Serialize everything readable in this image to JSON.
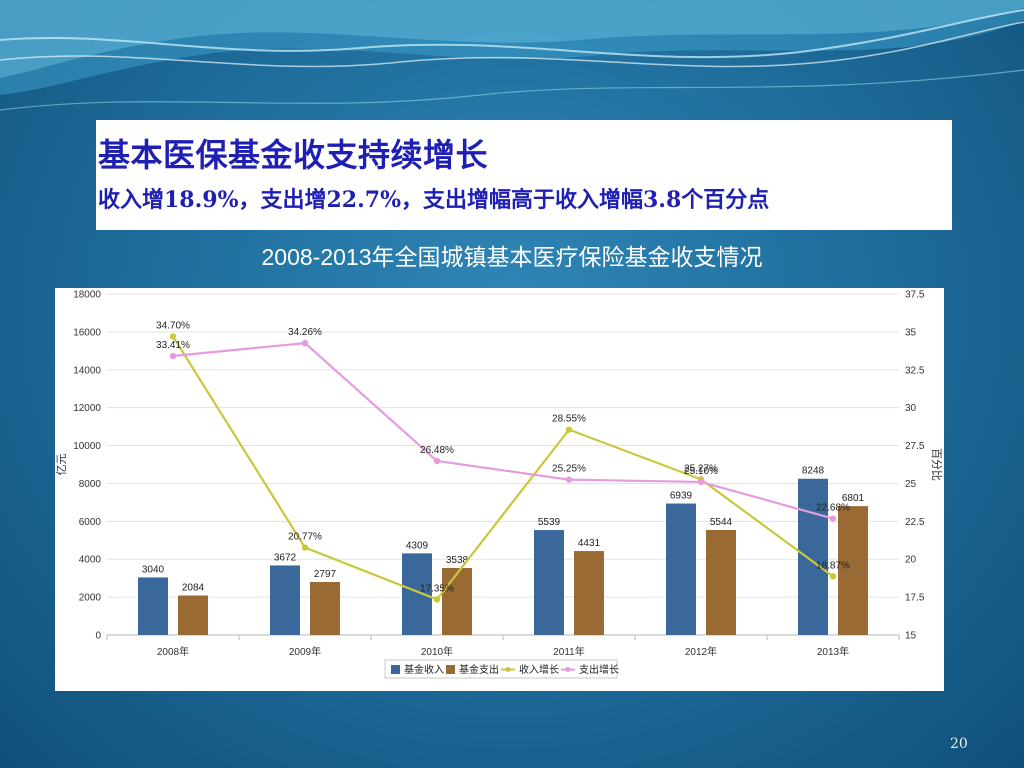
{
  "slide": {
    "title": "基本医保基金收支持续增长",
    "subtitle": "收入增18.9%，支出增22.7%，支出增幅高于收入增幅3.8个百分点",
    "chart_caption": "2008-2013年全国城镇基本医疗保险基金收支情况",
    "page_number": "20"
  },
  "colors": {
    "income_bar": "#3a689b",
    "expense_bar": "#9a6a35",
    "income_growth_line": "#c9c83b",
    "expense_growth_line": "#e59be0",
    "background": "#1d6a98",
    "title_text": "#1f1fb4"
  },
  "chart_data": {
    "type": "bar",
    "categories": [
      "2008年",
      "2009年",
      "2010年",
      "2011年",
      "2012年",
      "2013年"
    ],
    "series": [
      {
        "name": "基金收入",
        "type": "bar",
        "axis": "left",
        "values": [
          3040,
          3672,
          4309,
          5539,
          6939,
          8248
        ]
      },
      {
        "name": "基金支出",
        "type": "bar",
        "axis": "left",
        "values": [
          2084,
          2797,
          3538,
          4431,
          5544,
          6801
        ]
      },
      {
        "name": "收入增长",
        "type": "line",
        "axis": "right",
        "values": [
          34.7,
          20.77,
          17.35,
          28.55,
          25.27,
          18.87
        ],
        "labels": [
          "34.70%",
          "20.77%",
          "17.35%",
          "28.55%",
          "25.27%",
          "18.87%"
        ]
      },
      {
        "name": "支出增长",
        "type": "line",
        "axis": "right",
        "values": [
          33.41,
          34.26,
          26.48,
          25.25,
          25.1,
          22.68
        ],
        "labels": [
          "33.41%",
          "34.26%",
          "26.48%",
          "25.25%",
          "25.10%",
          "22.68%"
        ]
      }
    ],
    "ylabel": "亿元",
    "ylim": [
      0,
      18000
    ],
    "yticks": [
      "0",
      "2000",
      "4000",
      "6000",
      "8000",
      "10000",
      "12000",
      "14000",
      "16000",
      "18000"
    ],
    "y2label": "百分比",
    "y2lim": [
      15,
      37.5
    ],
    "y2ticks": [
      "15",
      "17.5",
      "20",
      "22.5",
      "25",
      "27.5",
      "30",
      "32.5",
      "35",
      "37.5"
    ],
    "grid": true,
    "legend": "bottom"
  }
}
